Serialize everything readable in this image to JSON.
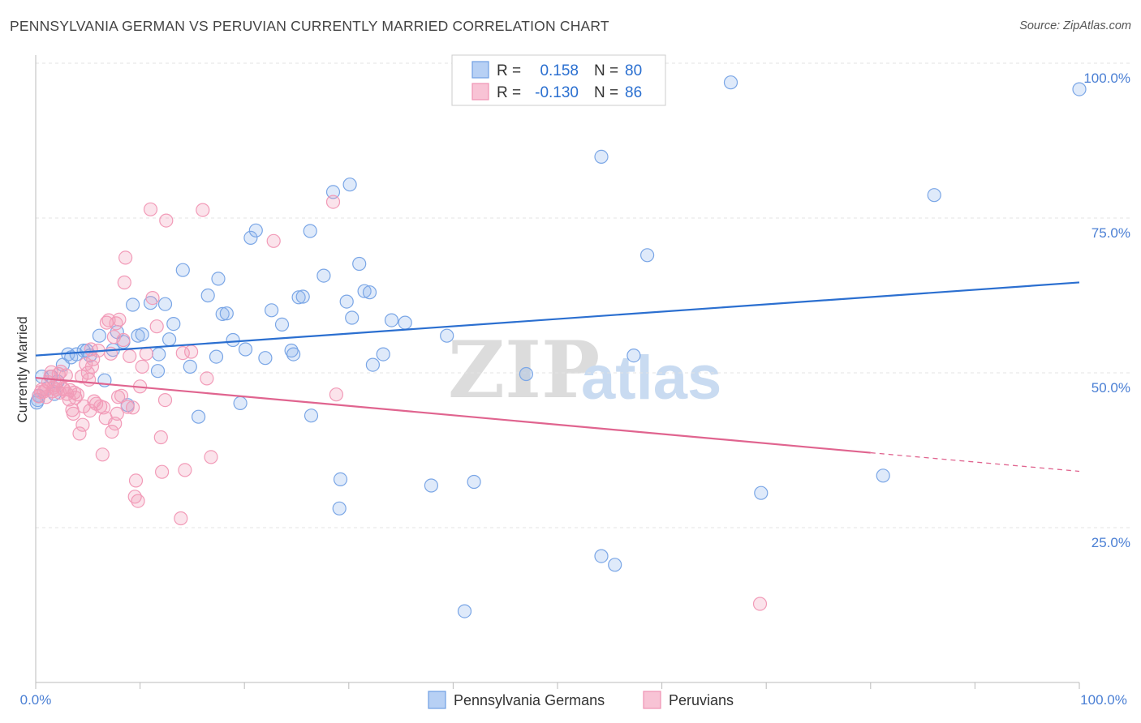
{
  "title": "PENNSYLVANIA GERMAN VS PERUVIAN CURRENTLY MARRIED CORRELATION CHART",
  "source": "Source: ZipAtlas.com",
  "watermark": {
    "zip": "ZIP",
    "atlas": "atlas"
  },
  "legend": {
    "r_label": "R =",
    "n_label": "N =",
    "rows": [
      {
        "r": "0.158",
        "n": "80"
      },
      {
        "r": "-0.130",
        "n": "86"
      }
    ]
  },
  "chart_data": {
    "type": "scatter",
    "title": "PENNSYLVANIA GERMAN VS PERUVIAN CURRENTLY MARRIED CORRELATION CHART",
    "xlabel": "",
    "ylabel": "Currently Married",
    "xlim": [
      0,
      100
    ],
    "ylim": [
      0,
      100
    ],
    "x_tick_labels": [
      "0.0%",
      "100.0%"
    ],
    "y_ticks": [
      25,
      50,
      75,
      100
    ],
    "y_tick_labels": [
      "25.0%",
      "50.0%",
      "75.0%",
      "100.0%"
    ],
    "grid": true,
    "series": [
      {
        "name": "Pennsylvania Germans",
        "color": "#7aa6e6",
        "line_color": "#2b6fd0",
        "trend": {
          "x": [
            0,
            100
          ],
          "y": [
            52.8,
            64.6
          ]
        },
        "points": [
          [
            0.6,
            49.4
          ],
          [
            1.5,
            49.4
          ],
          [
            1.8,
            46.6
          ],
          [
            2.1,
            48.6
          ],
          [
            2.6,
            51.3
          ],
          [
            3.1,
            53.0
          ],
          [
            3.4,
            52.5
          ],
          [
            3.9,
            53.0
          ],
          [
            4.6,
            53.6
          ],
          [
            4.9,
            53.6
          ],
          [
            5.2,
            52.8
          ],
          [
            6.1,
            56.0
          ],
          [
            6.6,
            48.8
          ],
          [
            7.4,
            53.7
          ],
          [
            7.8,
            56.6
          ],
          [
            8.4,
            55.0
          ],
          [
            8.8,
            44.8
          ],
          [
            9.3,
            61.0
          ],
          [
            9.8,
            56.0
          ],
          [
            10.2,
            56.2
          ],
          [
            11.0,
            61.3
          ],
          [
            11.7,
            50.3
          ],
          [
            11.8,
            53.0
          ],
          [
            12.4,
            61.1
          ],
          [
            12.8,
            55.4
          ],
          [
            13.2,
            57.9
          ],
          [
            14.1,
            66.6
          ],
          [
            14.8,
            51.0
          ],
          [
            15.6,
            42.9
          ],
          [
            16.5,
            62.5
          ],
          [
            17.3,
            52.6
          ],
          [
            17.5,
            65.2
          ],
          [
            17.9,
            59.5
          ],
          [
            18.3,
            59.6
          ],
          [
            18.9,
            55.3
          ],
          [
            19.6,
            45.1
          ],
          [
            20.1,
            53.8
          ],
          [
            20.6,
            71.8
          ],
          [
            21.1,
            73.0
          ],
          [
            22.0,
            52.4
          ],
          [
            22.6,
            60.1
          ],
          [
            23.6,
            57.8
          ],
          [
            24.5,
            53.6
          ],
          [
            24.7,
            53.0
          ],
          [
            25.2,
            62.2
          ],
          [
            25.6,
            62.3
          ],
          [
            26.3,
            72.9
          ],
          [
            26.4,
            43.1
          ],
          [
            27.6,
            65.7
          ],
          [
            28.5,
            79.2
          ],
          [
            29.2,
            32.8
          ],
          [
            29.1,
            28.1
          ],
          [
            29.8,
            61.5
          ],
          [
            30.1,
            80.4
          ],
          [
            30.3,
            58.9
          ],
          [
            31.0,
            67.6
          ],
          [
            31.5,
            63.2
          ],
          [
            32.0,
            63.0
          ],
          [
            32.3,
            51.3
          ],
          [
            33.3,
            53.0
          ],
          [
            34.1,
            58.5
          ],
          [
            35.4,
            58.1
          ],
          [
            37.9,
            31.8
          ],
          [
            39.4,
            56.0
          ],
          [
            41.1,
            11.5
          ],
          [
            42.0,
            32.4
          ],
          [
            47.0,
            49.8
          ],
          [
            54.2,
            20.4
          ],
          [
            54.2,
            84.9
          ],
          [
            55.5,
            19.0
          ],
          [
            57.3,
            52.8
          ],
          [
            58.6,
            69.0
          ],
          [
            66.6,
            96.9
          ],
          [
            69.5,
            30.6
          ],
          [
            81.2,
            33.4
          ],
          [
            86.1,
            78.7
          ],
          [
            100.0,
            95.8
          ],
          [
            0.2,
            45.6
          ],
          [
            0.3,
            46.3
          ],
          [
            0.1,
            45.2
          ]
        ]
      },
      {
        "name": "Peruvians",
        "color": "#f29bb8",
        "line_color": "#e0648f",
        "trend": {
          "x": [
            0,
            80
          ],
          "y": [
            49.2,
            37.1
          ]
        },
        "trend_dashed": {
          "x": [
            80,
            100
          ],
          "y": [
            37.1,
            34.1
          ]
        },
        "points": [
          [
            0.3,
            46.2
          ],
          [
            0.6,
            47.3
          ],
          [
            0.8,
            47.0
          ],
          [
            1.0,
            46.1
          ],
          [
            1.2,
            48.5
          ],
          [
            1.4,
            49.4
          ],
          [
            1.5,
            50.1
          ],
          [
            1.6,
            47.0
          ],
          [
            1.7,
            47.6
          ],
          [
            1.9,
            48.0
          ],
          [
            2.0,
            47.3
          ],
          [
            2.2,
            49.8
          ],
          [
            2.3,
            46.8
          ],
          [
            2.4,
            50.2
          ],
          [
            2.6,
            47.5
          ],
          [
            2.7,
            47.3
          ],
          [
            2.9,
            49.6
          ],
          [
            3.0,
            46.6
          ],
          [
            3.2,
            45.7
          ],
          [
            3.3,
            47.2
          ],
          [
            3.5,
            44.0
          ],
          [
            3.6,
            43.4
          ],
          [
            3.7,
            46.8
          ],
          [
            3.8,
            46.0
          ],
          [
            4.0,
            46.5
          ],
          [
            4.2,
            40.2
          ],
          [
            4.4,
            49.4
          ],
          [
            4.5,
            41.6
          ],
          [
            4.6,
            44.6
          ],
          [
            4.8,
            51.4
          ],
          [
            5.0,
            50.0
          ],
          [
            5.1,
            48.9
          ],
          [
            5.2,
            43.9
          ],
          [
            5.3,
            53.8
          ],
          [
            5.4,
            51.0
          ],
          [
            5.5,
            52.2
          ],
          [
            5.6,
            45.4
          ],
          [
            5.8,
            45.0
          ],
          [
            6.0,
            53.6
          ],
          [
            6.2,
            44.6
          ],
          [
            6.4,
            36.8
          ],
          [
            6.5,
            44.4
          ],
          [
            6.7,
            42.7
          ],
          [
            6.8,
            58.1
          ],
          [
            7.0,
            58.5
          ],
          [
            7.2,
            53.1
          ],
          [
            7.3,
            40.5
          ],
          [
            7.5,
            55.8
          ],
          [
            7.6,
            41.8
          ],
          [
            7.7,
            58.0
          ],
          [
            7.8,
            43.4
          ],
          [
            7.9,
            46.1
          ],
          [
            8.0,
            58.6
          ],
          [
            8.2,
            46.3
          ],
          [
            8.4,
            55.3
          ],
          [
            8.5,
            64.6
          ],
          [
            8.6,
            68.6
          ],
          [
            8.8,
            44.5
          ],
          [
            9.0,
            52.7
          ],
          [
            9.3,
            44.4
          ],
          [
            9.5,
            30.0
          ],
          [
            9.6,
            32.6
          ],
          [
            9.8,
            29.3
          ],
          [
            10.0,
            47.8
          ],
          [
            10.2,
            51.0
          ],
          [
            10.6,
            53.1
          ],
          [
            11.0,
            76.4
          ],
          [
            11.2,
            62.1
          ],
          [
            11.6,
            57.5
          ],
          [
            12.0,
            39.6
          ],
          [
            12.1,
            34.0
          ],
          [
            12.4,
            45.6
          ],
          [
            12.5,
            74.6
          ],
          [
            13.9,
            26.5
          ],
          [
            14.1,
            53.2
          ],
          [
            14.3,
            34.3
          ],
          [
            14.9,
            53.4
          ],
          [
            16.0,
            76.3
          ],
          [
            16.4,
            49.1
          ],
          [
            16.8,
            36.4
          ],
          [
            22.8,
            71.3
          ],
          [
            28.5,
            77.6
          ],
          [
            28.8,
            46.5
          ],
          [
            69.4,
            12.7
          ],
          [
            1.0,
            47.3
          ],
          [
            0.5,
            46.9
          ]
        ]
      }
    ]
  }
}
